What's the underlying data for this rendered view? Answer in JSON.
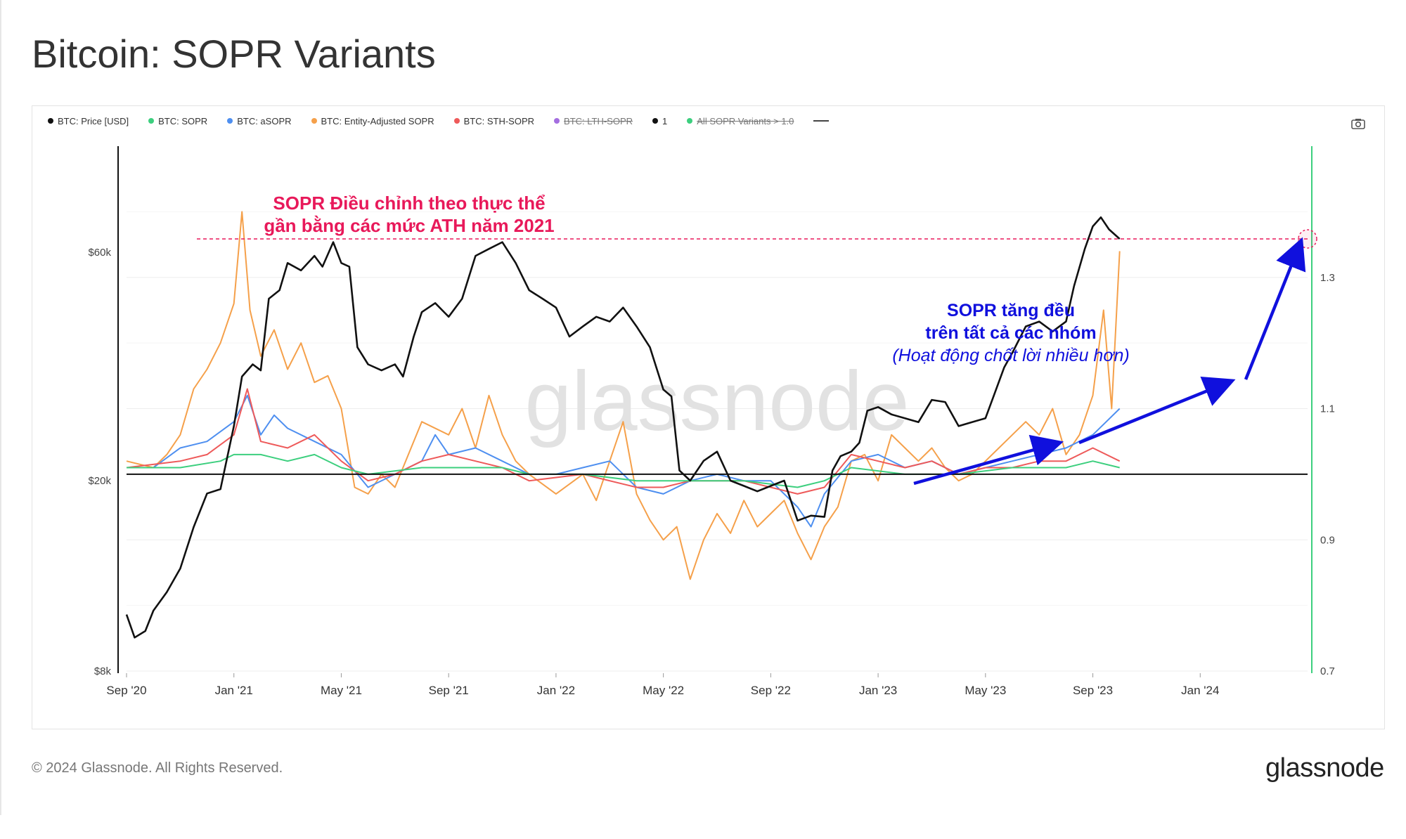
{
  "page": {
    "title": "Bitcoin: SOPR Variants"
  },
  "legend": [
    {
      "label": "BTC: Price [USD]",
      "color": "#111111",
      "struck": false
    },
    {
      "label": "BTC: SOPR",
      "color": "#3ccf7e",
      "struck": false
    },
    {
      "label": "BTC: aSOPR",
      "color": "#4e8ff0",
      "struck": false
    },
    {
      "label": "BTC: Entity-Adjusted SOPR",
      "color": "#f5a04a",
      "struck": false
    },
    {
      "label": "BTC: STH-SOPR",
      "color": "#ee5a5a",
      "struck": false
    },
    {
      "label": "BTC: LTH-SOPR",
      "color": "#a46ee0",
      "struck": true
    },
    {
      "label": "1",
      "color": "#111111",
      "struck": false
    },
    {
      "label": "All SOPR Variants > 1.0",
      "color": "#3ccf7e",
      "struck": true
    }
  ],
  "icons": {
    "camera": "camera-icon",
    "legend_extra": "dash-icon"
  },
  "watermark": "glassnode",
  "footer": {
    "copyright": "© 2024 Glassnode. All Rights Reserved.",
    "brand": "glassnode"
  },
  "annotations": {
    "left_line1": "SOPR Điều chỉnh theo thực thể",
    "left_line2": "gần bằng các mức ATH năm 2021",
    "right_line1": "SOPR tăng đều",
    "right_line2": "trên tất cả các nhóm",
    "right_line3": "(Hoạt động chốt lời nhiều hơn)",
    "left_color": "#e8195a",
    "right_color": "#1010dd"
  },
  "chart_data": {
    "type": "line",
    "x_ticks": [
      "Sep '20",
      "Jan '21",
      "May '21",
      "Sep '21",
      "Jan '22",
      "May '22",
      "Sep '22",
      "Jan '23",
      "May '23",
      "Sep '23",
      "Jan '24"
    ],
    "y_left": {
      "scale": "log",
      "range": [
        8000,
        100000
      ],
      "ticks": [
        "$8k",
        "$20k",
        "$60k"
      ],
      "tick_values": [
        8000,
        20000,
        60000
      ]
    },
    "y_right": {
      "range": [
        0.7,
        1.5
      ],
      "ticks": [
        "0.7",
        "0.9",
        "1.1",
        "1.3"
      ],
      "tick_values": [
        0.7,
        0.9,
        1.1,
        1.3
      ]
    },
    "reference_line": 1.0,
    "x_range_months": [
      0,
      44
    ],
    "series": [
      {
        "name": "BTC: Price [USD]",
        "axis": "left",
        "color": "#111111",
        "points": [
          [
            0,
            10500
          ],
          [
            0.3,
            9400
          ],
          [
            0.7,
            9700
          ],
          [
            1,
            10700
          ],
          [
            1.5,
            11700
          ],
          [
            2,
            13100
          ],
          [
            2.5,
            16000
          ],
          [
            3,
            18800
          ],
          [
            3.5,
            19200
          ],
          [
            4,
            26000
          ],
          [
            4.3,
            33000
          ],
          [
            4.7,
            35000
          ],
          [
            5,
            34000
          ],
          [
            5.3,
            48000
          ],
          [
            5.7,
            50000
          ],
          [
            6,
            57000
          ],
          [
            6.5,
            55000
          ],
          [
            7,
            59000
          ],
          [
            7.3,
            56000
          ],
          [
            7.7,
            63000
          ],
          [
            8,
            57000
          ],
          [
            8.3,
            56000
          ],
          [
            8.6,
            38000
          ],
          [
            9,
            35000
          ],
          [
            9.5,
            34000
          ],
          [
            10,
            35000
          ],
          [
            10.3,
            33000
          ],
          [
            10.7,
            40000
          ],
          [
            11,
            45000
          ],
          [
            11.5,
            47000
          ],
          [
            12,
            44000
          ],
          [
            12.5,
            48000
          ],
          [
            13,
            59000
          ],
          [
            13.5,
            61000
          ],
          [
            14,
            63000
          ],
          [
            14.5,
            57000
          ],
          [
            15,
            50000
          ],
          [
            15.5,
            48000
          ],
          [
            16,
            46000
          ],
          [
            16.5,
            40000
          ],
          [
            17,
            42000
          ],
          [
            17.5,
            44000
          ],
          [
            18,
            43000
          ],
          [
            18.5,
            46000
          ],
          [
            19,
            42000
          ],
          [
            19.5,
            38000
          ],
          [
            20,
            31000
          ],
          [
            20.3,
            30000
          ],
          [
            20.6,
            21000
          ],
          [
            21,
            20000
          ],
          [
            21.5,
            22000
          ],
          [
            22,
            23000
          ],
          [
            22.5,
            20000
          ],
          [
            23,
            19500
          ],
          [
            23.5,
            19000
          ],
          [
            24,
            19500
          ],
          [
            24.5,
            20000
          ],
          [
            25,
            16500
          ],
          [
            25.5,
            16900
          ],
          [
            26,
            16800
          ],
          [
            26.3,
            21000
          ],
          [
            26.6,
            22500
          ],
          [
            27,
            23000
          ],
          [
            27.3,
            24000
          ],
          [
            27.6,
            28000
          ],
          [
            28,
            28500
          ],
          [
            28.5,
            27500
          ],
          [
            29,
            27000
          ],
          [
            29.5,
            26500
          ],
          [
            30,
            29500
          ],
          [
            30.5,
            29200
          ],
          [
            31,
            26000
          ],
          [
            31.5,
            26500
          ],
          [
            32,
            27000
          ],
          [
            32.3,
            30000
          ],
          [
            32.7,
            34500
          ],
          [
            33,
            37000
          ],
          [
            33.5,
            42000
          ],
          [
            34,
            43000
          ],
          [
            34.5,
            41000
          ],
          [
            35,
            43000
          ],
          [
            35.3,
            51000
          ],
          [
            35.7,
            61000
          ],
          [
            36,
            68000
          ],
          [
            36.3,
            71000
          ],
          [
            36.6,
            67000
          ],
          [
            37,
            64000
          ]
        ]
      },
      {
        "name": "BTC: SOPR",
        "axis": "right",
        "color": "#3ccf7e",
        "points": [
          [
            0,
            1.01
          ],
          [
            2,
            1.01
          ],
          [
            3.5,
            1.02
          ],
          [
            4,
            1.03
          ],
          [
            5,
            1.03
          ],
          [
            6,
            1.02
          ],
          [
            7,
            1.03
          ],
          [
            8,
            1.01
          ],
          [
            9,
            1.0
          ],
          [
            11,
            1.01
          ],
          [
            13,
            1.01
          ],
          [
            14,
            1.01
          ],
          [
            15,
            1.0
          ],
          [
            17,
            1.0
          ],
          [
            19,
            0.99
          ],
          [
            21,
            0.99
          ],
          [
            23,
            0.99
          ],
          [
            25,
            0.98
          ],
          [
            26,
            0.99
          ],
          [
            27,
            1.01
          ],
          [
            29,
            1.0
          ],
          [
            31,
            1.0
          ],
          [
            33,
            1.01
          ],
          [
            35,
            1.01
          ],
          [
            36,
            1.02
          ],
          [
            37,
            1.01
          ]
        ]
      },
      {
        "name": "BTC: aSOPR",
        "axis": "right",
        "color": "#4e8ff0",
        "points": [
          [
            0,
            1.01
          ],
          [
            1,
            1.01
          ],
          [
            2,
            1.04
          ],
          [
            3,
            1.05
          ],
          [
            4,
            1.08
          ],
          [
            4.5,
            1.12
          ],
          [
            5,
            1.06
          ],
          [
            5.5,
            1.09
          ],
          [
            6,
            1.07
          ],
          [
            7,
            1.05
          ],
          [
            8,
            1.03
          ],
          [
            9,
            0.98
          ],
          [
            10,
            1.0
          ],
          [
            11,
            1.02
          ],
          [
            11.5,
            1.06
          ],
          [
            12,
            1.03
          ],
          [
            13,
            1.04
          ],
          [
            14,
            1.02
          ],
          [
            15,
            1.0
          ],
          [
            16,
            1.0
          ],
          [
            17,
            1.01
          ],
          [
            18,
            1.02
          ],
          [
            19,
            0.98
          ],
          [
            20,
            0.97
          ],
          [
            21,
            0.99
          ],
          [
            22,
            1.0
          ],
          [
            23,
            0.99
          ],
          [
            24,
            0.99
          ],
          [
            25,
            0.95
          ],
          [
            25.5,
            0.92
          ],
          [
            26,
            0.97
          ],
          [
            27,
            1.02
          ],
          [
            28,
            1.03
          ],
          [
            29,
            1.01
          ],
          [
            30,
            1.02
          ],
          [
            31,
            1.0
          ],
          [
            32,
            1.01
          ],
          [
            33,
            1.02
          ],
          [
            34,
            1.03
          ],
          [
            35,
            1.04
          ],
          [
            36,
            1.06
          ],
          [
            36.5,
            1.08
          ],
          [
            37,
            1.1
          ]
        ]
      },
      {
        "name": "BTC: Entity-Adjusted SOPR",
        "axis": "right",
        "color": "#f5a04a",
        "points": [
          [
            0,
            1.02
          ],
          [
            1,
            1.01
          ],
          [
            1.5,
            1.03
          ],
          [
            2,
            1.06
          ],
          [
            2.5,
            1.13
          ],
          [
            3,
            1.16
          ],
          [
            3.5,
            1.2
          ],
          [
            4,
            1.26
          ],
          [
            4.3,
            1.4
          ],
          [
            4.6,
            1.25
          ],
          [
            5,
            1.18
          ],
          [
            5.5,
            1.22
          ],
          [
            6,
            1.16
          ],
          [
            6.5,
            1.2
          ],
          [
            7,
            1.14
          ],
          [
            7.5,
            1.15
          ],
          [
            8,
            1.1
          ],
          [
            8.5,
            0.98
          ],
          [
            9,
            0.97
          ],
          [
            9.5,
            1.0
          ],
          [
            10,
            0.98
          ],
          [
            11,
            1.08
          ],
          [
            12,
            1.06
          ],
          [
            12.5,
            1.1
          ],
          [
            13,
            1.04
          ],
          [
            13.5,
            1.12
          ],
          [
            14,
            1.06
          ],
          [
            14.5,
            1.02
          ],
          [
            15,
            1.0
          ],
          [
            16,
            0.97
          ],
          [
            17,
            1.0
          ],
          [
            17.5,
            0.96
          ],
          [
            18,
            1.02
          ],
          [
            18.5,
            1.08
          ],
          [
            19,
            0.97
          ],
          [
            19.5,
            0.93
          ],
          [
            20,
            0.9
          ],
          [
            20.5,
            0.92
          ],
          [
            21,
            0.84
          ],
          [
            21.5,
            0.9
          ],
          [
            22,
            0.94
          ],
          [
            22.5,
            0.91
          ],
          [
            23,
            0.96
          ],
          [
            23.5,
            0.92
          ],
          [
            24,
            0.94
          ],
          [
            24.5,
            0.96
          ],
          [
            25,
            0.91
          ],
          [
            25.5,
            0.87
          ],
          [
            26,
            0.92
          ],
          [
            26.5,
            0.95
          ],
          [
            27,
            1.02
          ],
          [
            27.5,
            1.03
          ],
          [
            28,
            0.99
          ],
          [
            28.5,
            1.06
          ],
          [
            29,
            1.04
          ],
          [
            29.5,
            1.02
          ],
          [
            30,
            1.04
          ],
          [
            30.5,
            1.01
          ],
          [
            31,
            0.99
          ],
          [
            31.5,
            1.0
          ],
          [
            32,
            1.02
          ],
          [
            32.5,
            1.04
          ],
          [
            33,
            1.06
          ],
          [
            33.5,
            1.08
          ],
          [
            34,
            1.06
          ],
          [
            34.5,
            1.1
          ],
          [
            35,
            1.03
          ],
          [
            35.5,
            1.06
          ],
          [
            36,
            1.12
          ],
          [
            36.4,
            1.25
          ],
          [
            36.7,
            1.1
          ],
          [
            37,
            1.34
          ]
        ]
      },
      {
        "name": "BTC: STH-SOPR",
        "axis": "right",
        "color": "#ee5a5a",
        "points": [
          [
            0,
            1.01
          ],
          [
            2,
            1.02
          ],
          [
            3,
            1.03
          ],
          [
            4,
            1.06
          ],
          [
            4.5,
            1.13
          ],
          [
            5,
            1.05
          ],
          [
            6,
            1.04
          ],
          [
            7,
            1.06
          ],
          [
            8,
            1.02
          ],
          [
            9,
            0.99
          ],
          [
            10,
            1.0
          ],
          [
            11,
            1.02
          ],
          [
            12,
            1.03
          ],
          [
            13,
            1.02
          ],
          [
            14,
            1.01
          ],
          [
            15,
            0.99
          ],
          [
            17,
            1.0
          ],
          [
            19,
            0.98
          ],
          [
            20,
            0.98
          ],
          [
            21,
            0.99
          ],
          [
            23,
            0.99
          ],
          [
            25,
            0.97
          ],
          [
            26,
            0.98
          ],
          [
            27,
            1.03
          ],
          [
            28,
            1.02
          ],
          [
            29,
            1.01
          ],
          [
            30,
            1.02
          ],
          [
            31,
            1.0
          ],
          [
            32,
            1.01
          ],
          [
            33,
            1.01
          ],
          [
            34,
            1.02
          ],
          [
            35,
            1.02
          ],
          [
            36,
            1.04
          ],
          [
            37,
            1.02
          ]
        ]
      }
    ]
  }
}
